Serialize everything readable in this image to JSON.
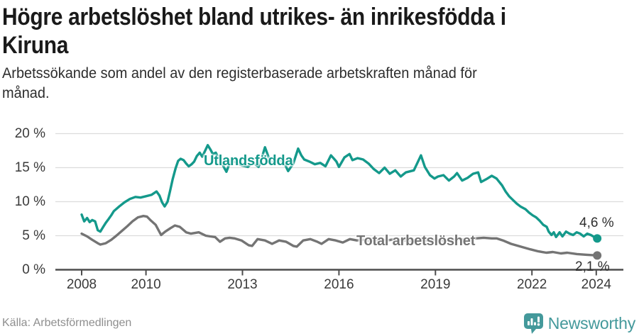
{
  "header": {
    "title": "Högre arbetslöshet bland utrikes- än inrikesfödda i Kiruna",
    "title_lines": [
      "Högre arbetslöshet bland utrikes- än inrikesfödda i",
      "Kiruna"
    ],
    "subtitle": "Arbetssökande som andel av den registerbaserade arbetskraften månad för månad.",
    "subtitle_lines": [
      "Arbetssökande som andel av den registerbaserade arbetskraften månad för",
      "månad."
    ]
  },
  "footer": {
    "source": "Källa: Arbetsförmedlingen",
    "brand": "Newsworthy",
    "brand_icon": "newsworthy-bar-chart-bubble-icon",
    "brand_color": "#44999b"
  },
  "chart_data": {
    "type": "line",
    "title": "Högre arbetslöshet bland utrikes- än inrikesfödda i Kiruna",
    "xlabel": "",
    "ylabel": "Arbetssökande som andel av den registerbaserade arbetskraften",
    "grid": true,
    "x_axis": {
      "ticks": [
        2008,
        2010,
        2013,
        2016,
        2019,
        2022,
        2024
      ],
      "tick_labels": [
        "2008",
        "2010",
        "2013",
        "2016",
        "2019",
        "2022",
        "2024"
      ],
      "range": [
        2007.2,
        2024.8
      ]
    },
    "y_axis": {
      "ticks": [
        0,
        5,
        10,
        15,
        20
      ],
      "tick_labels": [
        "0 %",
        "5 %",
        "10 %",
        "15 %",
        "20 %"
      ],
      "unit": "%",
      "range": [
        0,
        20
      ]
    },
    "series": [
      {
        "name": "Utlandsfödda",
        "color": "#14998b",
        "end_label": "4,6 %",
        "end_value": 4.6,
        "points": [
          [
            2008,
            8.1
          ],
          [
            2008.08,
            7.1
          ],
          [
            2008.17,
            7.6
          ],
          [
            2008.25,
            7
          ],
          [
            2008.33,
            7.3
          ],
          [
            2008.42,
            7.1
          ],
          [
            2008.5,
            5.8
          ],
          [
            2008.58,
            5.6
          ],
          [
            2008.67,
            6.3
          ],
          [
            2008.75,
            6.9
          ],
          [
            2008.83,
            7.4
          ],
          [
            2008.92,
            8
          ],
          [
            2009,
            8.6
          ],
          [
            2009.17,
            9.3
          ],
          [
            2009.33,
            9.9
          ],
          [
            2009.5,
            10.4
          ],
          [
            2009.67,
            10.7
          ],
          [
            2009.83,
            10.6
          ],
          [
            2010,
            10.8
          ],
          [
            2010.17,
            11
          ],
          [
            2010.33,
            11.5
          ],
          [
            2010.42,
            10.9
          ],
          [
            2010.5,
            9.9
          ],
          [
            2010.58,
            9.3
          ],
          [
            2010.67,
            10
          ],
          [
            2010.75,
            11.6
          ],
          [
            2010.83,
            13.3
          ],
          [
            2010.92,
            14.9
          ],
          [
            2011,
            16
          ],
          [
            2011.08,
            16.3
          ],
          [
            2011.17,
            16.1
          ],
          [
            2011.25,
            15.6
          ],
          [
            2011.33,
            15.2
          ],
          [
            2011.42,
            15.5
          ],
          [
            2011.5,
            15.9
          ],
          [
            2011.58,
            16.7
          ],
          [
            2011.67,
            17.2
          ],
          [
            2011.75,
            16.6
          ],
          [
            2011.83,
            17.4
          ],
          [
            2011.92,
            18.3
          ],
          [
            2012,
            17.7
          ],
          [
            2012.08,
            17
          ],
          [
            2012.17,
            17.2
          ],
          [
            2012.25,
            16.5
          ],
          [
            2012.33,
            16
          ],
          [
            2012.42,
            15.1
          ],
          [
            2012.5,
            14.4
          ],
          [
            2012.58,
            15.4
          ],
          [
            2012.67,
            16.1
          ],
          [
            2012.75,
            15.9
          ],
          [
            2012.83,
            15.7
          ],
          [
            2012.92,
            15.5
          ],
          [
            2013,
            15.3
          ],
          [
            2013.17,
            15.1
          ],
          [
            2013.33,
            15.8
          ],
          [
            2013.5,
            15.1
          ],
          [
            2013.58,
            16.1
          ],
          [
            2013.7,
            18
          ],
          [
            2013.83,
            16.3
          ],
          [
            2013.92,
            15.7
          ],
          [
            2014,
            15.9
          ],
          [
            2014.17,
            16.2
          ],
          [
            2014.33,
            15.4
          ],
          [
            2014.42,
            14.5
          ],
          [
            2014.58,
            15.6
          ],
          [
            2014.73,
            17.8
          ],
          [
            2014.83,
            16.8
          ],
          [
            2014.92,
            16.2
          ],
          [
            2015.08,
            15.9
          ],
          [
            2015.25,
            15.5
          ],
          [
            2015.42,
            15.7
          ],
          [
            2015.58,
            15.2
          ],
          [
            2015.75,
            16.8
          ],
          [
            2015.83,
            16.4
          ],
          [
            2015.92,
            15.9
          ],
          [
            2016,
            15.1
          ],
          [
            2016.17,
            16.5
          ],
          [
            2016.33,
            17
          ],
          [
            2016.42,
            16.1
          ],
          [
            2016.58,
            16.4
          ],
          [
            2016.75,
            16.2
          ],
          [
            2016.92,
            15.6
          ],
          [
            2017.08,
            14.8
          ],
          [
            2017.25,
            14.2
          ],
          [
            2017.42,
            15
          ],
          [
            2017.58,
            14.1
          ],
          [
            2017.75,
            14.6
          ],
          [
            2017.92,
            13.7
          ],
          [
            2018.08,
            14.3
          ],
          [
            2018.33,
            14.6
          ],
          [
            2018.55,
            16.8
          ],
          [
            2018.67,
            15.1
          ],
          [
            2018.83,
            13.9
          ],
          [
            2018.97,
            13.4
          ],
          [
            2019.08,
            13.7
          ],
          [
            2019.25,
            13.9
          ],
          [
            2019.42,
            13.1
          ],
          [
            2019.58,
            13.7
          ],
          [
            2019.67,
            14.2
          ],
          [
            2019.83,
            13.1
          ],
          [
            2020,
            13.5
          ],
          [
            2020.17,
            14.1
          ],
          [
            2020.33,
            14.3
          ],
          [
            2020.42,
            12.9
          ],
          [
            2020.58,
            13.3
          ],
          [
            2020.75,
            13.8
          ],
          [
            2020.9,
            13.4
          ],
          [
            2021.07,
            12.4
          ],
          [
            2021.18,
            11.5
          ],
          [
            2021.29,
            10.8
          ],
          [
            2021.42,
            10.2
          ],
          [
            2021.53,
            9.7
          ],
          [
            2021.64,
            9.3
          ],
          [
            2021.8,
            8.9
          ],
          [
            2021.91,
            8.4
          ],
          [
            2022.02,
            8
          ],
          [
            2022.13,
            7.7
          ],
          [
            2022.24,
            7.2
          ],
          [
            2022.35,
            6.6
          ],
          [
            2022.46,
            6.3
          ],
          [
            2022.52,
            5.6
          ],
          [
            2022.61,
            5.1
          ],
          [
            2022.68,
            5.5
          ],
          [
            2022.75,
            4.8
          ],
          [
            2022.86,
            5.5
          ],
          [
            2022.95,
            4.9
          ],
          [
            2023.06,
            5.6
          ],
          [
            2023.17,
            5.3
          ],
          [
            2023.28,
            5.1
          ],
          [
            2023.39,
            5.5
          ],
          [
            2023.5,
            5.3
          ],
          [
            2023.61,
            4.9
          ],
          [
            2023.72,
            5.3
          ],
          [
            2023.83,
            5.1
          ],
          [
            2023.94,
            4.8
          ],
          [
            2024.03,
            4.6
          ]
        ]
      },
      {
        "name": "Total arbetslöshet",
        "color": "#747474",
        "end_label": "2,1 %",
        "end_value": 2.1,
        "points": [
          [
            2008,
            5.3
          ],
          [
            2008.17,
            4.9
          ],
          [
            2008.33,
            4.4
          ],
          [
            2008.5,
            3.9
          ],
          [
            2008.58,
            3.7
          ],
          [
            2008.75,
            3.9
          ],
          [
            2008.92,
            4.4
          ],
          [
            2009.08,
            5
          ],
          [
            2009.25,
            5.7
          ],
          [
            2009.42,
            6.4
          ],
          [
            2009.58,
            7.1
          ],
          [
            2009.75,
            7.7
          ],
          [
            2009.92,
            7.9
          ],
          [
            2010.03,
            7.8
          ],
          [
            2010.16,
            7.2
          ],
          [
            2010.3,
            6.6
          ],
          [
            2010.47,
            5.1
          ],
          [
            2010.6,
            5.6
          ],
          [
            2010.76,
            6.1
          ],
          [
            2010.9,
            6.5
          ],
          [
            2011.05,
            6.3
          ],
          [
            2011.25,
            5.5
          ],
          [
            2011.4,
            5.3
          ],
          [
            2011.64,
            5.5
          ],
          [
            2011.86,
            5
          ],
          [
            2012,
            4.9
          ],
          [
            2012.15,
            4.8
          ],
          [
            2012.3,
            4.1
          ],
          [
            2012.46,
            4.6
          ],
          [
            2012.6,
            4.7
          ],
          [
            2012.75,
            4.6
          ],
          [
            2012.97,
            4.3
          ],
          [
            2013.19,
            3.6
          ],
          [
            2013.3,
            3.5
          ],
          [
            2013.47,
            4.5
          ],
          [
            2013.7,
            4.3
          ],
          [
            2013.92,
            3.8
          ],
          [
            2014.14,
            4.3
          ],
          [
            2014.36,
            4.1
          ],
          [
            2014.58,
            3.5
          ],
          [
            2014.69,
            3.4
          ],
          [
            2014.89,
            4.3
          ],
          [
            2015.11,
            4.5
          ],
          [
            2015.33,
            4.1
          ],
          [
            2015.46,
            3.8
          ],
          [
            2015.68,
            4.5
          ],
          [
            2015.9,
            4.3
          ],
          [
            2016.12,
            4
          ],
          [
            2016.34,
            4.5
          ],
          [
            2016.56,
            4.3
          ],
          [
            2016.75,
            4.4
          ],
          [
            2017,
            4.2
          ],
          [
            2017.25,
            4.4
          ],
          [
            2017.5,
            4.3
          ],
          [
            2017.75,
            4.5
          ],
          [
            2018,
            4.3
          ],
          [
            2018.25,
            4.2
          ],
          [
            2018.5,
            4.4
          ],
          [
            2018.75,
            4.3
          ],
          [
            2019,
            4.4
          ],
          [
            2019.25,
            4.3
          ],
          [
            2019.5,
            4.4
          ],
          [
            2019.75,
            4.5
          ],
          [
            2020,
            4.4
          ],
          [
            2020.25,
            4.6
          ],
          [
            2020.5,
            4.7
          ],
          [
            2020.75,
            4.6
          ],
          [
            2020.9,
            4.6
          ],
          [
            2021.1,
            4.3
          ],
          [
            2021.35,
            3.8
          ],
          [
            2021.65,
            3.4
          ],
          [
            2021.95,
            3
          ],
          [
            2022.2,
            2.7
          ],
          [
            2022.45,
            2.5
          ],
          [
            2022.65,
            2.6
          ],
          [
            2022.9,
            2.4
          ],
          [
            2023.1,
            2.5
          ],
          [
            2023.4,
            2.3
          ],
          [
            2023.7,
            2.2
          ],
          [
            2024.03,
            2.1
          ]
        ]
      }
    ],
    "colors": {
      "accent_teal": "#14998b",
      "line_gray": "#747474",
      "axis": "#4d4d4d",
      "gridline": "#dcdcdc"
    }
  }
}
